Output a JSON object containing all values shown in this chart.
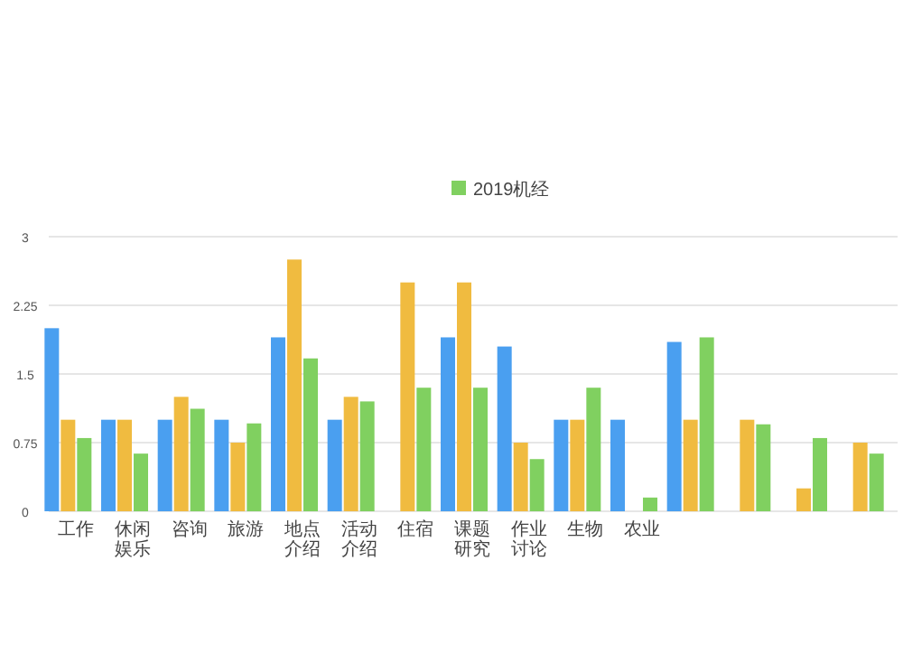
{
  "chart_data": {
    "type": "bar",
    "categories": [
      "工作",
      "休闲娱乐",
      "咨询",
      "旅游",
      "地点介绍",
      "活动介绍",
      "住宿",
      "课题研究",
      "作业讨论",
      "生物",
      "农业",
      null,
      null,
      null,
      null
    ],
    "series": [
      {
        "color": "#4a9ff0",
        "values": [
          2.0,
          1.0,
          1.0,
          1.0,
          1.9,
          1.0,
          null,
          1.9,
          1.8,
          1.0,
          1.0,
          1.85,
          null,
          null,
          null
        ]
      },
      {
        "color": "#f0bb40",
        "values": [
          1.0,
          1.0,
          1.25,
          0.75,
          2.75,
          1.25,
          2.5,
          2.5,
          0.75,
          1.0,
          null,
          1.0,
          1.0,
          0.25,
          0.75
        ]
      },
      {
        "name": "2019机经",
        "color": "#80d060",
        "values": [
          0.8,
          0.63,
          1.12,
          0.96,
          1.67,
          1.2,
          1.35,
          1.35,
          0.57,
          1.35,
          0.15,
          1.9,
          0.95,
          0.8,
          0.63
        ]
      }
    ],
    "ylim": [
      0,
      3
    ],
    "yticks": [
      0,
      0.75,
      1.5,
      2.25,
      3
    ],
    "grid": "y",
    "legend": "top"
  }
}
